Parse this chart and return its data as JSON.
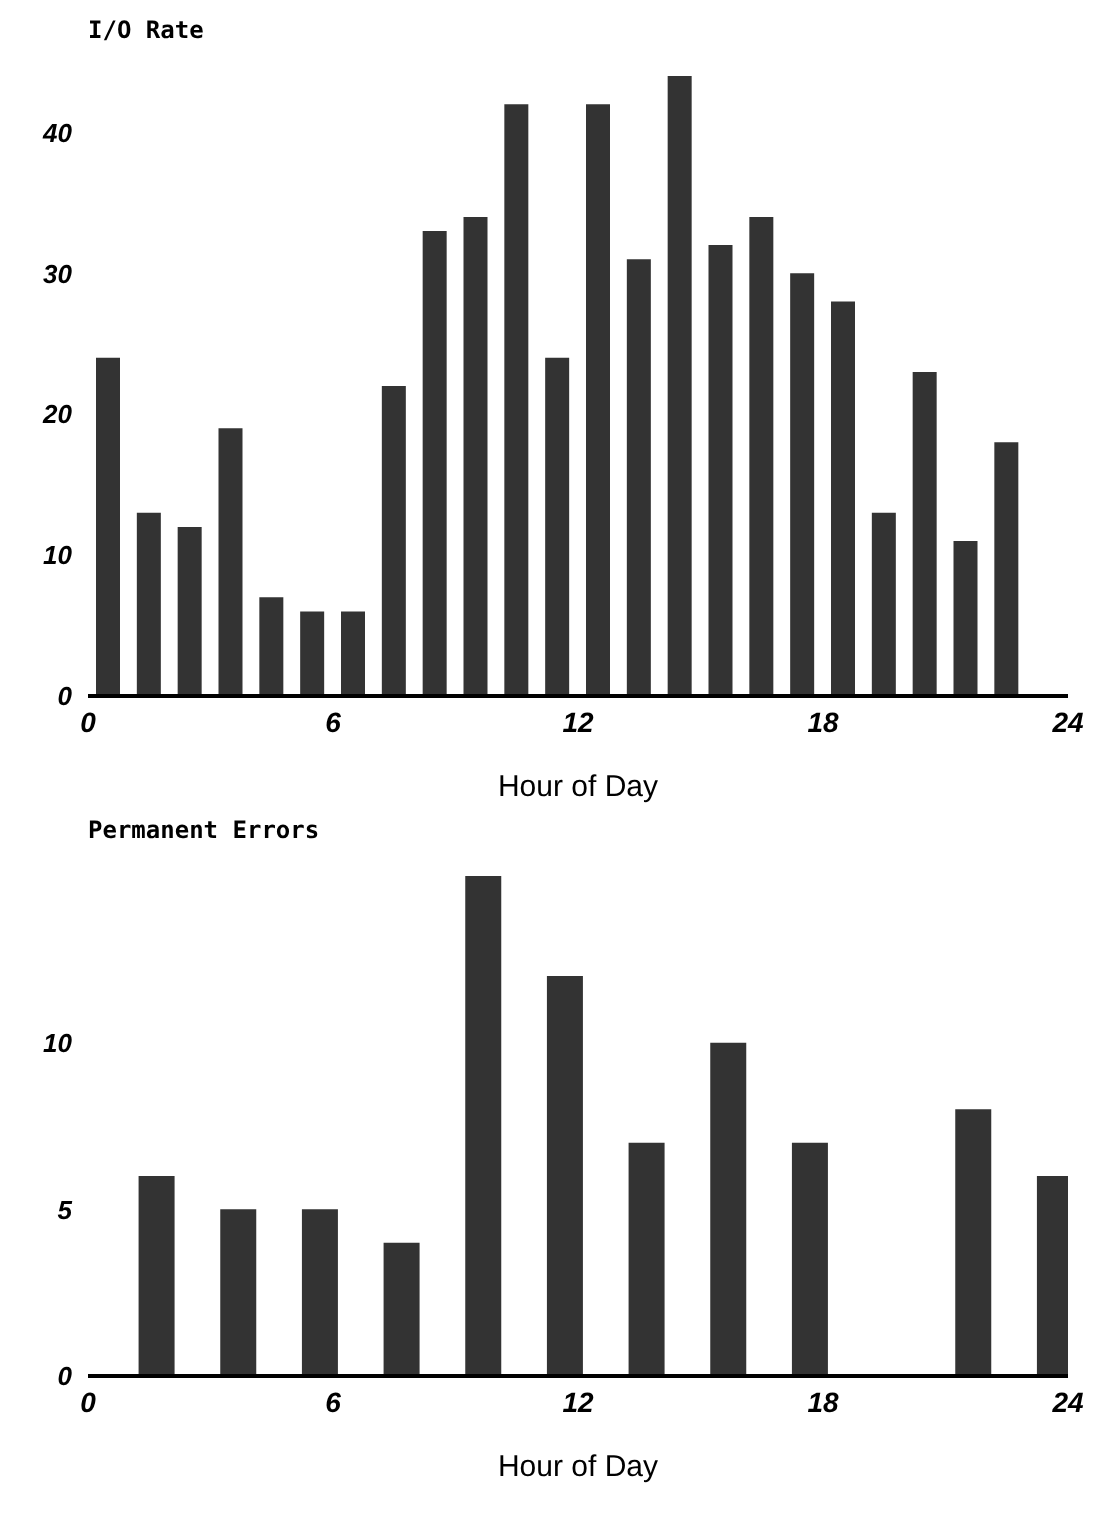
{
  "chart_data": [
    {
      "type": "bar",
      "title": "I/O Rate",
      "xlabel": "Hour of Day",
      "x": [
        0.5,
        1.5,
        2.5,
        3.5,
        4.5,
        5.5,
        6.5,
        7.5,
        8.5,
        9.5,
        10.5,
        11.5,
        12.5,
        13.5,
        14.5,
        15.5,
        16.5,
        17.5,
        18.5,
        19.5,
        20.5,
        21.5,
        22.5
      ],
      "values": [
        24,
        13,
        12,
        19,
        7,
        6,
        6,
        22,
        33,
        34,
        42,
        24,
        42,
        31,
        44,
        32,
        34,
        30,
        28,
        13,
        23,
        11,
        18
      ],
      "color": "#333333",
      "xlim": [
        0,
        24
      ],
      "xticks": [
        0,
        6,
        12,
        18,
        24
      ],
      "ylim": [
        0,
        44
      ],
      "yticks": [
        0,
        10,
        20,
        30,
        40
      ]
    },
    {
      "type": "bar",
      "title": "Permanent Errors",
      "xlabel": "Hour of Day",
      "x": [
        1.7,
        3.7,
        5.7,
        7.7,
        9.7,
        11.7,
        13.7,
        15.7,
        17.7,
        21.7,
        23.7
      ],
      "values": [
        6,
        5,
        5,
        4,
        15,
        12,
        7,
        10,
        7,
        8,
        6
      ],
      "color": "#333333",
      "xlim": [
        0,
        24
      ],
      "xticks": [
        0,
        6,
        12,
        18,
        24
      ],
      "ylim": [
        0,
        15
      ],
      "yticks": [
        0,
        5,
        10
      ]
    }
  ]
}
